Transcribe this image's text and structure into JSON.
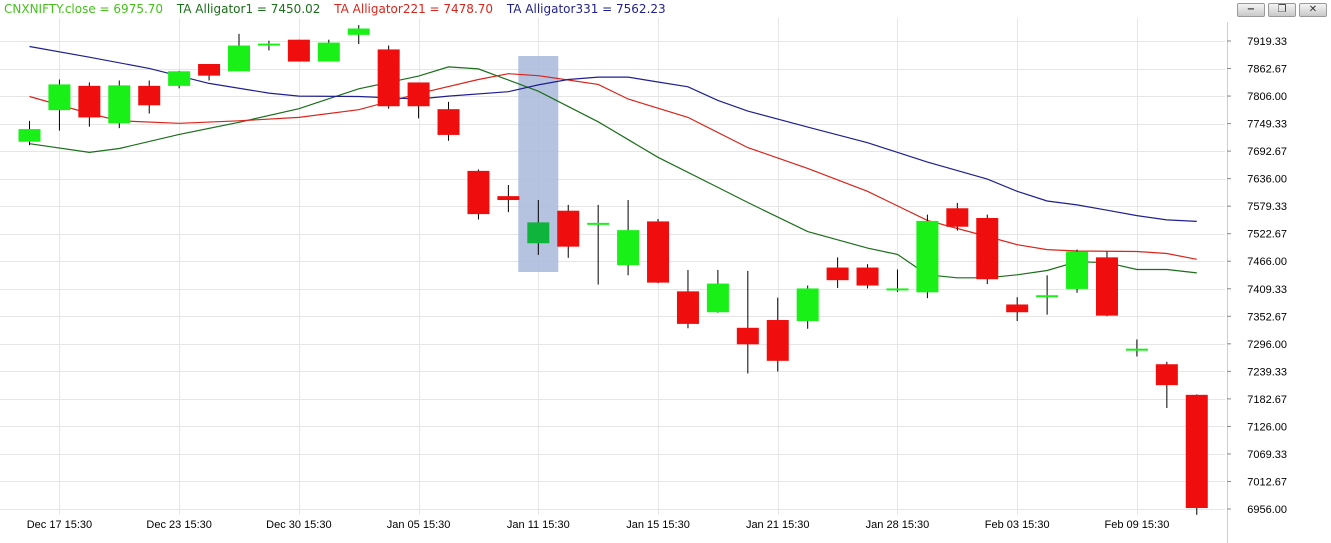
{
  "legend": {
    "close": {
      "label": "CNXNIFTY.close = 6975.70",
      "color": "#44c21a"
    },
    "alligator1": {
      "label": "TA Alligator1 = 7450.02",
      "color": "#1b6e1b"
    },
    "alligator221": {
      "label": "TA Alligator221 = 7478.70",
      "color": "#d8251c"
    },
    "alligator331": {
      "label": "TA Alligator331 = 7562.23",
      "color": "#1f1f8f"
    }
  },
  "window_buttons": {
    "minimize": "−",
    "restore": "❐",
    "close": "✕"
  },
  "colors": {
    "up": "#18f018",
    "down": "#f00d0d",
    "selected": "#0fb43c",
    "highlight": "#a8b8dc",
    "grid": "#e6e6e6"
  },
  "chart_data": {
    "type": "candlestick",
    "y_ticks": [
      "7919.33",
      "7862.67",
      "7806.00",
      "7749.33",
      "7692.67",
      "7636.00",
      "7579.33",
      "7522.67",
      "7466.00",
      "7409.33",
      "7352.67",
      "7296.00",
      "7239.33",
      "7182.67",
      "7126.00",
      "7069.33",
      "7012.67",
      "6956.00"
    ],
    "ylim": [
      6956.0,
      7919.33
    ],
    "x_labels": [
      {
        "label": "Dec 17 15:30",
        "i": 1
      },
      {
        "label": "Dec 23 15:30",
        "i": 5
      },
      {
        "label": "Dec 30 15:30",
        "i": 9
      },
      {
        "label": "Jan 05 15:30",
        "i": 13
      },
      {
        "label": "Jan 11 15:30",
        "i": 17
      },
      {
        "label": "Jan 15 15:30",
        "i": 21
      },
      {
        "label": "Jan 21 15:30",
        "i": 25
      },
      {
        "label": "Jan 28 15:30",
        "i": 29
      },
      {
        "label": "Feb 03 15:30",
        "i": 33
      },
      {
        "label": "Feb 09 15:30",
        "i": 37
      }
    ],
    "highlight_index": 17,
    "candles": [
      {
        "o": 7712,
        "h": 7755,
        "l": 7705,
        "c": 7738
      },
      {
        "o": 7777,
        "h": 7840,
        "l": 7735,
        "c": 7830
      },
      {
        "o": 7827,
        "h": 7834,
        "l": 7743,
        "c": 7762
      },
      {
        "o": 7750,
        "h": 7838,
        "l": 7740,
        "c": 7828
      },
      {
        "o": 7827,
        "h": 7838,
        "l": 7770,
        "c": 7787
      },
      {
        "o": 7827,
        "h": 7858,
        "l": 7822,
        "c": 7857
      },
      {
        "o": 7872,
        "h": 7872,
        "l": 7838,
        "c": 7848
      },
      {
        "o": 7857,
        "h": 7934,
        "l": 7857,
        "c": 7910
      },
      {
        "o": 7914,
        "h": 7920,
        "l": 7900,
        "c": 7914
      },
      {
        "o": 7922,
        "h": 7922,
        "l": 7880,
        "c": 7877
      },
      {
        "o": 7877,
        "h": 7922,
        "l": 7877,
        "c": 7916
      },
      {
        "o": 7932,
        "h": 7952,
        "l": 7913,
        "c": 7945
      },
      {
        "o": 7902,
        "h": 7910,
        "l": 7780,
        "c": 7785
      },
      {
        "o": 7834,
        "h": 7834,
        "l": 7760,
        "c": 7785
      },
      {
        "o": 7779,
        "h": 7794,
        "l": 7714,
        "c": 7726
      },
      {
        "o": 7652,
        "h": 7655,
        "l": 7552,
        "c": 7563
      },
      {
        "o": 7600,
        "h": 7623,
        "l": 7567,
        "c": 7592
      },
      {
        "o": 7503,
        "h": 7592,
        "l": 7479,
        "c": 7546
      },
      {
        "o": 7570,
        "h": 7582,
        "l": 7473,
        "c": 7496
      },
      {
        "o": 7545,
        "h": 7582,
        "l": 7418,
        "c": 7545
      },
      {
        "o": 7458,
        "h": 7592,
        "l": 7437,
        "c": 7530
      },
      {
        "o": 7548,
        "h": 7553,
        "l": 7421,
        "c": 7422
      },
      {
        "o": 7404,
        "h": 7448,
        "l": 7328,
        "c": 7337
      },
      {
        "o": 7361,
        "h": 7448,
        "l": 7360,
        "c": 7420
      },
      {
        "o": 7329,
        "h": 7446,
        "l": 7235,
        "c": 7295
      },
      {
        "o": 7345,
        "h": 7391,
        "l": 7239,
        "c": 7261
      },
      {
        "o": 7343,
        "h": 7416,
        "l": 7327,
        "c": 7410
      },
      {
        "o": 7453,
        "h": 7474,
        "l": 7411,
        "c": 7427
      },
      {
        "o": 7453,
        "h": 7460,
        "l": 7410,
        "c": 7416
      },
      {
        "o": 7410,
        "h": 7449,
        "l": 7403,
        "c": 7410
      },
      {
        "o": 7402,
        "h": 7562,
        "l": 7390,
        "c": 7549
      },
      {
        "o": 7575,
        "h": 7586,
        "l": 7529,
        "c": 7537
      },
      {
        "o": 7555,
        "h": 7562,
        "l": 7419,
        "c": 7429
      },
      {
        "o": 7377,
        "h": 7392,
        "l": 7343,
        "c": 7361
      },
      {
        "o": 7396,
        "h": 7437,
        "l": 7356,
        "c": 7396
      },
      {
        "o": 7409,
        "h": 7490,
        "l": 7401,
        "c": 7486
      },
      {
        "o": 7474,
        "h": 7486,
        "l": 7353,
        "c": 7354
      },
      {
        "o": 7286,
        "h": 7305,
        "l": 7270,
        "c": 7286
      },
      {
        "o": 7254,
        "h": 7259,
        "l": 7164,
        "c": 7211
      },
      {
        "o": 7191,
        "h": 7192,
        "l": 6944,
        "c": 6958
      }
    ],
    "series": [
      {
        "name": "TA Alligator1",
        "color": "#1b6e1b",
        "points": [
          [
            0,
            7708
          ],
          [
            2,
            7690
          ],
          [
            3,
            7698
          ],
          [
            5,
            7727
          ],
          [
            7,
            7752
          ],
          [
            9,
            7780
          ],
          [
            11,
            7821
          ],
          [
            13,
            7847
          ],
          [
            14,
            7866
          ],
          [
            15,
            7862
          ],
          [
            17,
            7816
          ],
          [
            19,
            7753
          ],
          [
            21,
            7680
          ],
          [
            23,
            7618
          ],
          [
            24,
            7587
          ],
          [
            26,
            7527
          ],
          [
            28,
            7493
          ],
          [
            29,
            7480
          ],
          [
            30,
            7438
          ],
          [
            31,
            7432
          ],
          [
            32,
            7432
          ],
          [
            33,
            7438
          ],
          [
            34,
            7447
          ],
          [
            35,
            7465
          ],
          [
            36,
            7463
          ],
          [
            37,
            7449
          ],
          [
            38,
            7449
          ],
          [
            39,
            7442
          ]
        ]
      },
      {
        "name": "TA Alligator221",
        "color": "#d8251c",
        "points": [
          [
            0,
            7805
          ],
          [
            2,
            7770
          ],
          [
            3,
            7755
          ],
          [
            5,
            7750
          ],
          [
            7,
            7755
          ],
          [
            9,
            7762
          ],
          [
            11,
            7778
          ],
          [
            13,
            7811
          ],
          [
            15,
            7840
          ],
          [
            16,
            7852
          ],
          [
            17,
            7848
          ],
          [
            18,
            7839
          ],
          [
            19,
            7830
          ],
          [
            20,
            7800
          ],
          [
            22,
            7762
          ],
          [
            24,
            7700
          ],
          [
            26,
            7657
          ],
          [
            28,
            7610
          ],
          [
            30,
            7550
          ],
          [
            32,
            7517
          ],
          [
            33,
            7500
          ],
          [
            34,
            7490
          ],
          [
            35,
            7487
          ],
          [
            37,
            7486
          ],
          [
            38,
            7482
          ],
          [
            39,
            7470
          ]
        ]
      },
      {
        "name": "TA Alligator331",
        "color": "#1f1f8f",
        "points": [
          [
            0,
            7908
          ],
          [
            2,
            7886
          ],
          [
            4,
            7863
          ],
          [
            6,
            7832
          ],
          [
            8,
            7812
          ],
          [
            9,
            7806
          ],
          [
            11,
            7805
          ],
          [
            13,
            7800
          ],
          [
            14,
            7806
          ],
          [
            16,
            7815
          ],
          [
            17,
            7829
          ],
          [
            18,
            7840
          ],
          [
            19,
            7845
          ],
          [
            20,
            7845
          ],
          [
            21,
            7835
          ],
          [
            22,
            7825
          ],
          [
            23,
            7797
          ],
          [
            24,
            7775
          ],
          [
            26,
            7742
          ],
          [
            28,
            7710
          ],
          [
            30,
            7670
          ],
          [
            32,
            7635
          ],
          [
            33,
            7610
          ],
          [
            34,
            7590
          ],
          [
            35,
            7582
          ],
          [
            36,
            7571
          ],
          [
            37,
            7560
          ],
          [
            38,
            7551
          ],
          [
            39,
            7548
          ]
        ]
      }
    ]
  }
}
